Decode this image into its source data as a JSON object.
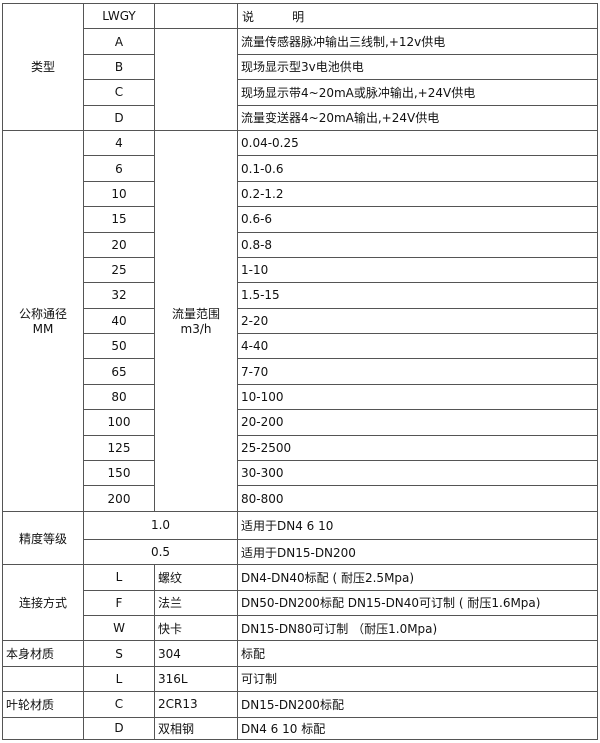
{
  "header": {
    "model": "LWGY",
    "desc": "说          明"
  },
  "type_group": {
    "label": "类型",
    "rows": [
      {
        "code": "A",
        "desc": "流量传感器脉冲输出三线制,+12v供电"
      },
      {
        "code": "B",
        "desc": "现场显示型3v电池供电"
      },
      {
        "code": "C",
        "desc": "现场显示带4~20mA或脉冲输出,+24V供电"
      },
      {
        "code": "D",
        "desc": "流量变送器4~20mA输出,+24V供电"
      }
    ]
  },
  "diameter_group": {
    "label_line1": "公称通径",
    "label_line2": "MM",
    "range_label_line1": "流量范围",
    "range_label_line2": "m3/h",
    "rows": [
      {
        "dn": "4",
        "range": "0.04-0.25"
      },
      {
        "dn": "6",
        "range": "0.1-0.6"
      },
      {
        "dn": "10",
        "range": "0.2-1.2"
      },
      {
        "dn": "15",
        "range": "0.6-6"
      },
      {
        "dn": "20",
        "range": "0.8-8"
      },
      {
        "dn": "25",
        "range": "1-10"
      },
      {
        "dn": "32",
        "range": "1.5-15"
      },
      {
        "dn": "40",
        "range": "2-20"
      },
      {
        "dn": "50",
        "range": "4-40"
      },
      {
        "dn": "65",
        "range": "7-70"
      },
      {
        "dn": "80",
        "range": "10-100"
      },
      {
        "dn": "100",
        "range": "20-200"
      },
      {
        "dn": "125",
        "range": "25-2500"
      },
      {
        "dn": "150",
        "range": "30-300"
      },
      {
        "dn": "200",
        "range": "80-800"
      }
    ]
  },
  "accuracy_group": {
    "label": "精度等级",
    "rows": [
      {
        "grade": "1.0",
        "desc": "适用于DN4  6  10"
      },
      {
        "grade": "0.5",
        "desc": "适用于DN15-DN200"
      }
    ]
  },
  "connection_group": {
    "label": "连接方式",
    "rows": [
      {
        "code": "L",
        "name": "螺纹",
        "desc": "DN4-DN40标配 ( 耐压2.5Mpa)"
      },
      {
        "code": "F",
        "name": "法兰",
        "desc": "DN50-DN200标配 DN15-DN40可订制 ( 耐压1.6Mpa)"
      },
      {
        "code": "W",
        "name": "快卡",
        "desc": "DN15-DN80可订制 （耐压1.0Mpa)"
      }
    ]
  },
  "body_material_group": {
    "label": "本身材质",
    "rows": [
      {
        "code": "S",
        "name": "304",
        "desc": "标配"
      },
      {
        "code": "L",
        "name": "316L",
        "desc": "可订制"
      }
    ]
  },
  "impeller_material_group": {
    "label": "叶轮材质",
    "rows": [
      {
        "code": "C",
        "name": "2CR13",
        "desc": "DN15-DN200标配"
      },
      {
        "code": "D",
        "name": "双相钢",
        "desc": "DN4 6 10 标配"
      }
    ]
  }
}
